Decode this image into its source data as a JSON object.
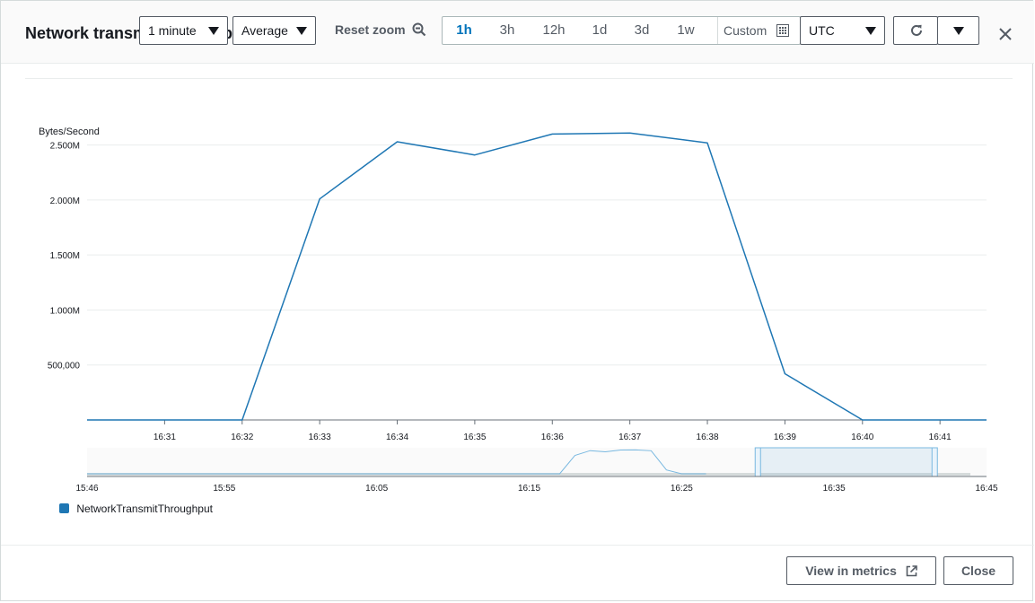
{
  "header": {
    "title": "Network transmit throughput",
    "period_value": "1 minute",
    "statistic_value": "Average",
    "reset_zoom_label": "Reset zoom",
    "time_ranges": [
      {
        "label": "1h",
        "active": true
      },
      {
        "label": "3h",
        "active": false
      },
      {
        "label": "12h",
        "active": false
      },
      {
        "label": "1d",
        "active": false
      },
      {
        "label": "3d",
        "active": false
      },
      {
        "label": "1w",
        "active": false
      }
    ],
    "custom_label": "Custom",
    "timezone_value": "UTC"
  },
  "chart_data": {
    "type": "line",
    "ylabel": "Bytes/Second",
    "ytick_labels": [
      "500,000",
      "1.000M",
      "1.500M",
      "2.000M",
      "2.500M"
    ],
    "yticks": [
      500000,
      1000000,
      1500000,
      2000000,
      2500000
    ],
    "ylim": [
      0,
      2750000
    ],
    "xlim": [
      "16:30",
      "16:41.6"
    ],
    "xtick_labels": [
      "16:31",
      "16:32",
      "16:33",
      "16:34",
      "16:35",
      "16:36",
      "16:37",
      "16:38",
      "16:39",
      "16:40",
      "16:41"
    ],
    "grid": true,
    "legend_position": "bottom-left",
    "series": [
      {
        "name": "NetworkTransmitThroughput",
        "color": "#1f77b4",
        "x": [
          "16:30",
          "16:31",
          "16:32",
          "16:33",
          "16:34",
          "16:35",
          "16:36",
          "16:37",
          "16:38",
          "16:39",
          "16:40",
          "16:41",
          "16:41.6"
        ],
        "values": [
          0,
          0,
          0,
          2010000,
          2530000,
          2410000,
          2600000,
          2610000,
          2520000,
          420000,
          0,
          0,
          0
        ]
      }
    ],
    "overview": {
      "xtick_labels": [
        "15:46",
        "15:55",
        "16:05",
        "16:15",
        "16:25",
        "16:35",
        "16:45"
      ],
      "xlim": [
        "15:46",
        "16:45"
      ],
      "selection": [
        "16:30",
        "16:41.6"
      ]
    }
  },
  "footer": {
    "view_in_metrics_label": "View in metrics",
    "close_label": "Close"
  }
}
